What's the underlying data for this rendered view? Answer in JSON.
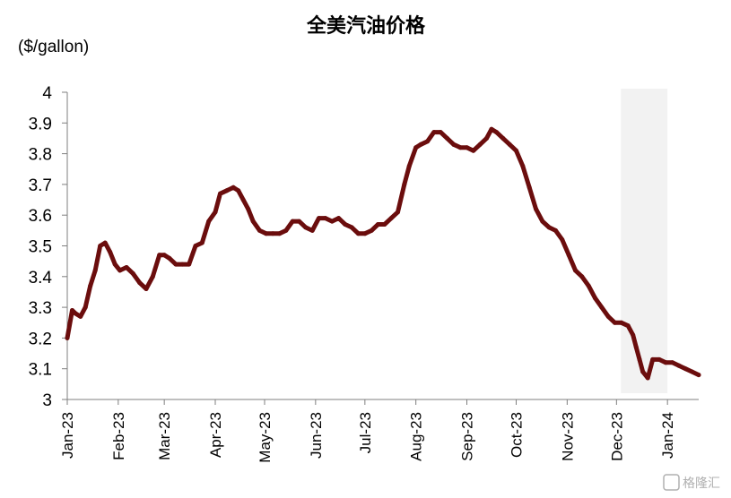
{
  "chart_data": {
    "type": "line",
    "title": "全美汽油价格",
    "unit_label": "($/gallon)",
    "ylim": [
      3,
      4
    ],
    "yticks": [
      "3",
      "3.1",
      "3.2",
      "3.3",
      "3.4",
      "3.5",
      "3.6",
      "3.7",
      "3.8",
      "3.9",
      "4"
    ],
    "x_range": [
      "2023-01-01",
      "2024-01-20"
    ],
    "x_tick_labels": [
      "Jan-23",
      "Feb-23",
      "Mar-23",
      "Apr-23",
      "May-23",
      "Jun-23",
      "Jul-23",
      "Aug-23",
      "Sep-23",
      "Oct-23",
      "Nov-23",
      "Dec-23",
      "Jan-24"
    ],
    "x_tick_dates": [
      "2023-01-01",
      "2023-02-01",
      "2023-03-01",
      "2023-04-01",
      "2023-05-01",
      "2023-06-01",
      "2023-07-01",
      "2023-08-01",
      "2023-09-01",
      "2023-10-01",
      "2023-11-01",
      "2023-12-01",
      "2024-01-01"
    ],
    "shaded_region": {
      "start": "2023-12-01",
      "end": "2024-01-01",
      "color": "#f2f2f2"
    },
    "grid": false,
    "legend": "none",
    "series": [
      {
        "color": "#6b0d0d",
        "x": [
          "2023-01-01",
          "2023-01-04",
          "2023-01-06",
          "2023-01-09",
          "2023-01-12",
          "2023-01-15",
          "2023-01-18",
          "2023-01-21",
          "2023-01-24",
          "2023-01-27",
          "2023-01-30",
          "2023-02-02",
          "2023-02-06",
          "2023-02-10",
          "2023-02-14",
          "2023-02-18",
          "2023-02-22",
          "2023-02-26",
          "2023-03-01",
          "2023-03-04",
          "2023-03-08",
          "2023-03-12",
          "2023-03-16",
          "2023-03-20",
          "2023-03-24",
          "2023-03-28",
          "2023-04-01",
          "2023-04-04",
          "2023-04-08",
          "2023-04-12",
          "2023-04-15",
          "2023-04-18",
          "2023-04-21",
          "2023-04-24",
          "2023-04-28",
          "2023-05-02",
          "2023-05-06",
          "2023-05-10",
          "2023-05-14",
          "2023-05-18",
          "2023-05-22",
          "2023-05-26",
          "2023-05-30",
          "2023-06-03",
          "2023-06-07",
          "2023-06-11",
          "2023-06-15",
          "2023-06-19",
          "2023-06-23",
          "2023-06-27",
          "2023-07-01",
          "2023-07-05",
          "2023-07-09",
          "2023-07-13",
          "2023-07-17",
          "2023-07-21",
          "2023-07-25",
          "2023-07-28",
          "2023-08-01",
          "2023-08-04",
          "2023-08-08",
          "2023-08-12",
          "2023-08-16",
          "2023-08-20",
          "2023-08-24",
          "2023-08-28",
          "2023-09-01",
          "2023-09-05",
          "2023-09-09",
          "2023-09-13",
          "2023-09-16",
          "2023-09-19",
          "2023-09-23",
          "2023-09-27",
          "2023-10-01",
          "2023-10-05",
          "2023-10-09",
          "2023-10-13",
          "2023-10-17",
          "2023-10-21",
          "2023-10-25",
          "2023-10-29",
          "2023-11-02",
          "2023-11-06",
          "2023-11-10",
          "2023-11-14",
          "2023-11-18",
          "2023-11-22",
          "2023-11-26",
          "2023-11-30",
          "2023-12-04",
          "2023-12-08",
          "2023-12-11",
          "2023-12-13",
          "2023-12-15",
          "2023-12-17",
          "2023-12-20",
          "2023-12-23",
          "2023-12-27",
          "2023-12-31",
          "2024-01-04",
          "2024-01-08",
          "2024-01-12",
          "2024-01-16",
          "2024-01-20"
        ],
        "y": [
          3.2,
          3.29,
          3.28,
          3.27,
          3.3,
          3.37,
          3.42,
          3.5,
          3.51,
          3.48,
          3.44,
          3.42,
          3.43,
          3.41,
          3.38,
          3.36,
          3.4,
          3.47,
          3.47,
          3.46,
          3.44,
          3.44,
          3.44,
          3.5,
          3.51,
          3.58,
          3.61,
          3.67,
          3.68,
          3.69,
          3.68,
          3.65,
          3.62,
          3.58,
          3.55,
          3.54,
          3.54,
          3.54,
          3.55,
          3.58,
          3.58,
          3.56,
          3.55,
          3.59,
          3.59,
          3.58,
          3.59,
          3.57,
          3.56,
          3.54,
          3.54,
          3.55,
          3.57,
          3.57,
          3.59,
          3.61,
          3.7,
          3.76,
          3.82,
          3.83,
          3.84,
          3.87,
          3.87,
          3.85,
          3.83,
          3.82,
          3.82,
          3.81,
          3.83,
          3.85,
          3.88,
          3.87,
          3.85,
          3.83,
          3.81,
          3.76,
          3.69,
          3.62,
          3.58,
          3.56,
          3.55,
          3.52,
          3.47,
          3.42,
          3.4,
          3.37,
          3.33,
          3.3,
          3.27,
          3.25,
          3.25,
          3.24,
          3.21,
          3.17,
          3.13,
          3.09,
          3.07,
          3.13,
          3.13,
          3.12,
          3.12,
          3.11,
          3.1,
          3.09,
          3.08
        ]
      }
    ]
  },
  "watermark": "格隆汇"
}
